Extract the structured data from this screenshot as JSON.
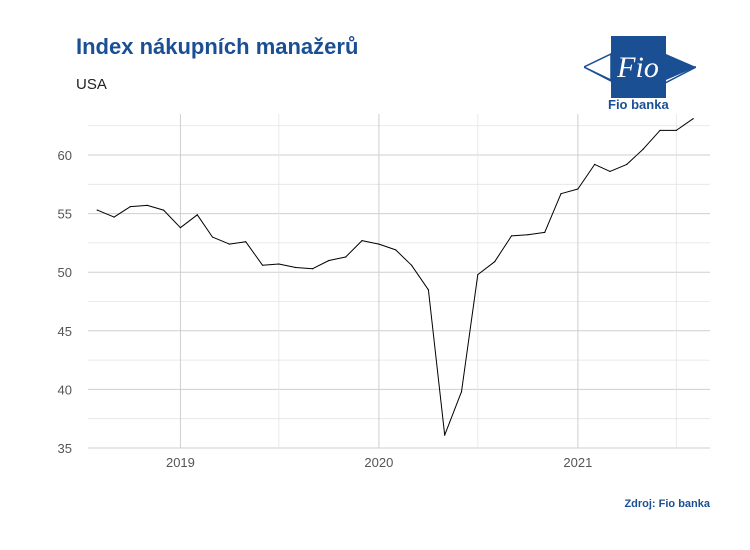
{
  "header": {
    "title": "Index nákupních manažerů",
    "subtitle": "USA"
  },
  "logo": {
    "mark_text": "Fio",
    "name": "Fio banka",
    "color": "#1b4f93"
  },
  "footer": {
    "source": "Zdroj: Fio banka"
  },
  "chart_data": {
    "type": "line",
    "title": "Index nákupních manažerů",
    "subtitle": "USA",
    "xlabel": "",
    "ylabel": "",
    "ylim": [
      35,
      63.5
    ],
    "xlim": [
      "2018-07-15",
      "2021-09-01"
    ],
    "yticks": [
      35,
      40,
      45,
      50,
      55,
      60
    ],
    "xticks": [
      "2019-01-01",
      "2020-01-01",
      "2021-01-01"
    ],
    "xtick_labels": [
      "2019",
      "2020",
      "2021"
    ],
    "grid": true,
    "line_color": "#000000",
    "series": [
      {
        "x": [
          "2018-08-01",
          "2018-09-01",
          "2018-10-01",
          "2018-11-01",
          "2018-12-01",
          "2019-01-01",
          "2019-02-01",
          "2019-03-01",
          "2019-04-01",
          "2019-05-01",
          "2019-06-01",
          "2019-07-01",
          "2019-08-01",
          "2019-09-01",
          "2019-10-01",
          "2019-11-01",
          "2019-12-01",
          "2020-01-01",
          "2020-02-01",
          "2020-03-01",
          "2020-04-01",
          "2020-05-01",
          "2020-06-01",
          "2020-07-01",
          "2020-08-01",
          "2020-09-01",
          "2020-10-01",
          "2020-11-01",
          "2020-12-01",
          "2021-01-01",
          "2021-02-01",
          "2021-03-01",
          "2021-04-01",
          "2021-05-01",
          "2021-06-01",
          "2021-07-01",
          "2021-08-01"
        ],
        "values": [
          55.3,
          54.7,
          55.6,
          55.7,
          55.3,
          53.8,
          54.9,
          53.0,
          52.4,
          52.6,
          50.6,
          50.7,
          50.4,
          50.3,
          51.0,
          51.3,
          52.7,
          52.4,
          51.9,
          50.6,
          48.5,
          36.1,
          39.8,
          49.8,
          50.9,
          53.1,
          53.2,
          53.4,
          56.7,
          57.1,
          59.2,
          58.6,
          59.2,
          60.5,
          62.1,
          62.1,
          63.1
        ]
      }
    ]
  }
}
